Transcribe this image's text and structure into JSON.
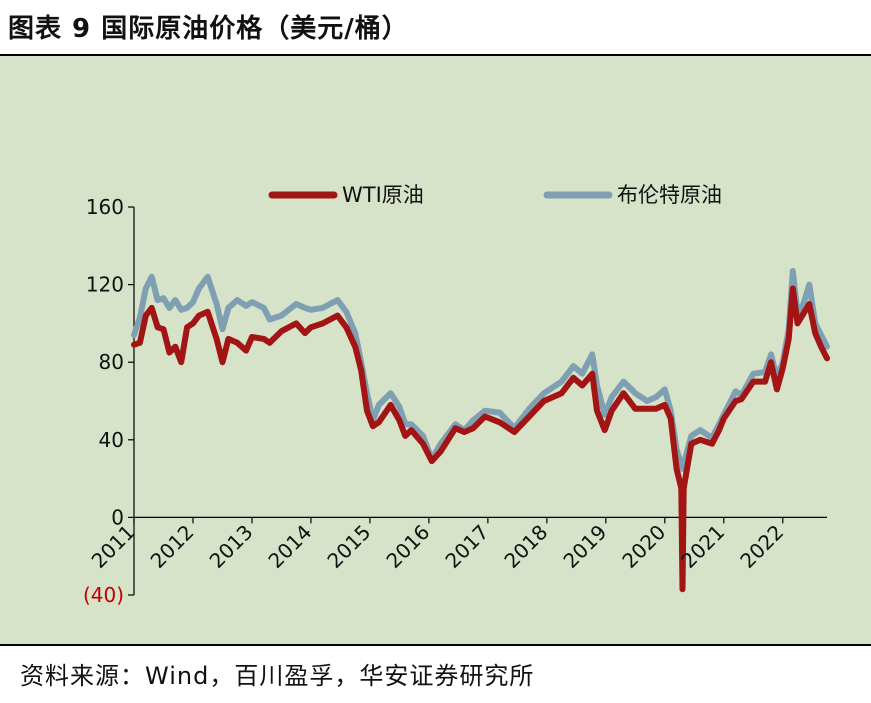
{
  "title": "图表 9 国际原油价格（美元/桶）",
  "source": "资料来源：Wind，百川盈孚，华安证券研究所",
  "chart_data": {
    "type": "line",
    "ylim": [
      -40,
      160
    ],
    "yticks": [
      {
        "value": 160,
        "label": "160"
      },
      {
        "value": 120,
        "label": "120"
      },
      {
        "value": 80,
        "label": "80"
      },
      {
        "value": 40,
        "label": "40"
      },
      {
        "value": 0,
        "label": "0"
      },
      {
        "value": -40,
        "label": "(40)"
      }
    ],
    "xlim": [
      2011,
      2022.75
    ],
    "xticks": [
      "2011",
      "2012",
      "2013",
      "2014",
      "2015",
      "2016",
      "2017",
      "2018",
      "2019",
      "2020",
      "2021",
      "2022"
    ],
    "legend": "top",
    "colors": {
      "wti": "#a31414",
      "brent": "#7f9fb3",
      "negative_label": "#c00000"
    },
    "series": [
      {
        "name": "布伦特原油",
        "x": [
          2011.0,
          2011.1,
          2011.2,
          2011.3,
          2011.4,
          2011.5,
          2011.6,
          2011.7,
          2011.8,
          2011.9,
          2012.0,
          2012.1,
          2012.25,
          2012.4,
          2012.5,
          2012.6,
          2012.75,
          2012.9,
          2013.0,
          2013.2,
          2013.3,
          2013.5,
          2013.75,
          2013.9,
          2014.0,
          2014.2,
          2014.45,
          2014.6,
          2014.75,
          2014.85,
          2014.95,
          2015.05,
          2015.15,
          2015.35,
          2015.5,
          2015.6,
          2015.7,
          2015.9,
          2016.05,
          2016.2,
          2016.45,
          2016.6,
          2016.75,
          2016.95,
          2017.2,
          2017.45,
          2017.7,
          2017.95,
          2018.25,
          2018.45,
          2018.6,
          2018.77,
          2018.85,
          2018.98,
          2019.1,
          2019.3,
          2019.5,
          2019.7,
          2019.85,
          2020.0,
          2020.1,
          2020.2,
          2020.3,
          2020.45,
          2020.6,
          2020.8,
          2020.92,
          2021.0,
          2021.2,
          2021.3,
          2021.5,
          2021.7,
          2021.8,
          2021.9,
          2022.0,
          2022.1,
          2022.17,
          2022.25,
          2022.35,
          2022.45,
          2022.55,
          2022.65,
          2022.75
        ],
        "values": [
          94,
          103,
          118,
          124,
          112,
          113,
          108,
          112,
          107,
          108,
          111,
          118,
          124,
          110,
          97,
          108,
          112,
          109,
          111,
          108,
          102,
          104,
          110,
          108,
          107,
          108,
          112,
          106,
          95,
          80,
          64,
          50,
          58,
          64,
          57,
          48,
          48,
          42,
          30,
          38,
          48,
          45,
          50,
          55,
          54,
          46,
          56,
          64,
          70,
          78,
          74,
          84,
          68,
          53,
          62,
          70,
          64,
          60,
          62,
          66,
          55,
          35,
          25,
          42,
          45,
          41,
          48,
          53,
          65,
          63,
          74,
          75,
          84,
          72,
          80,
          97,
          127,
          105,
          110,
          120,
          100,
          94,
          88
        ]
      },
      {
        "name": "WTI原油",
        "x": [
          2011.0,
          2011.1,
          2011.2,
          2011.3,
          2011.4,
          2011.5,
          2011.6,
          2011.7,
          2011.8,
          2011.9,
          2012.0,
          2012.1,
          2012.25,
          2012.4,
          2012.5,
          2012.6,
          2012.75,
          2012.9,
          2013.0,
          2013.2,
          2013.3,
          2013.5,
          2013.75,
          2013.9,
          2014.0,
          2014.2,
          2014.45,
          2014.6,
          2014.75,
          2014.85,
          2014.95,
          2015.05,
          2015.15,
          2015.35,
          2015.5,
          2015.6,
          2015.7,
          2015.9,
          2016.05,
          2016.2,
          2016.45,
          2016.6,
          2016.75,
          2016.95,
          2017.2,
          2017.45,
          2017.7,
          2017.95,
          2018.25,
          2018.45,
          2018.6,
          2018.77,
          2018.85,
          2018.98,
          2019.1,
          2019.3,
          2019.5,
          2019.7,
          2019.85,
          2020.0,
          2020.1,
          2020.2,
          2020.28,
          2020.3,
          2020.32,
          2020.45,
          2020.6,
          2020.8,
          2020.92,
          2021.0,
          2021.2,
          2021.3,
          2021.5,
          2021.7,
          2021.8,
          2021.9,
          2022.0,
          2022.1,
          2022.17,
          2022.25,
          2022.35,
          2022.45,
          2022.55,
          2022.65,
          2022.75
        ],
        "values": [
          89,
          90,
          104,
          108,
          98,
          97,
          85,
          88,
          80,
          98,
          100,
          104,
          106,
          92,
          80,
          92,
          90,
          86,
          93,
          92,
          90,
          96,
          100,
          95,
          98,
          100,
          104,
          98,
          88,
          76,
          55,
          47,
          49,
          58,
          50,
          42,
          45,
          38,
          29,
          34,
          46,
          44,
          46,
          52,
          49,
          44,
          52,
          60,
          64,
          72,
          68,
          74,
          55,
          45,
          55,
          64,
          56,
          56,
          56,
          58,
          51,
          25,
          15,
          -37,
          15,
          38,
          40,
          38,
          45,
          51,
          60,
          61,
          70,
          70,
          80,
          66,
          77,
          92,
          118,
          100,
          105,
          110,
          95,
          88,
          82
        ]
      }
    ]
  }
}
